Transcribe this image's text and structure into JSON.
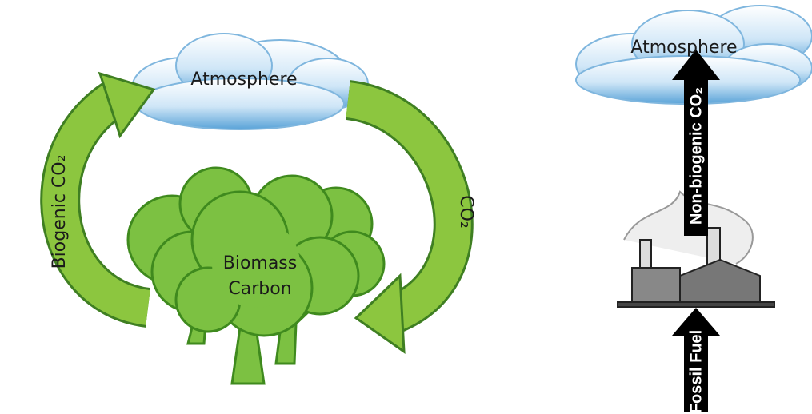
{
  "left": {
    "atmosphere": "Atmosphere",
    "biomass": [
      "Biomass",
      "Carbon"
    ],
    "up_arrow": "Biogenic CO₂",
    "down_arrow": "CO₂"
  },
  "right": {
    "atmosphere": "Atmosphere",
    "up_arrow": "Non-biogenic CO₂",
    "bottom_arrow": "Fossil Fuel"
  }
}
